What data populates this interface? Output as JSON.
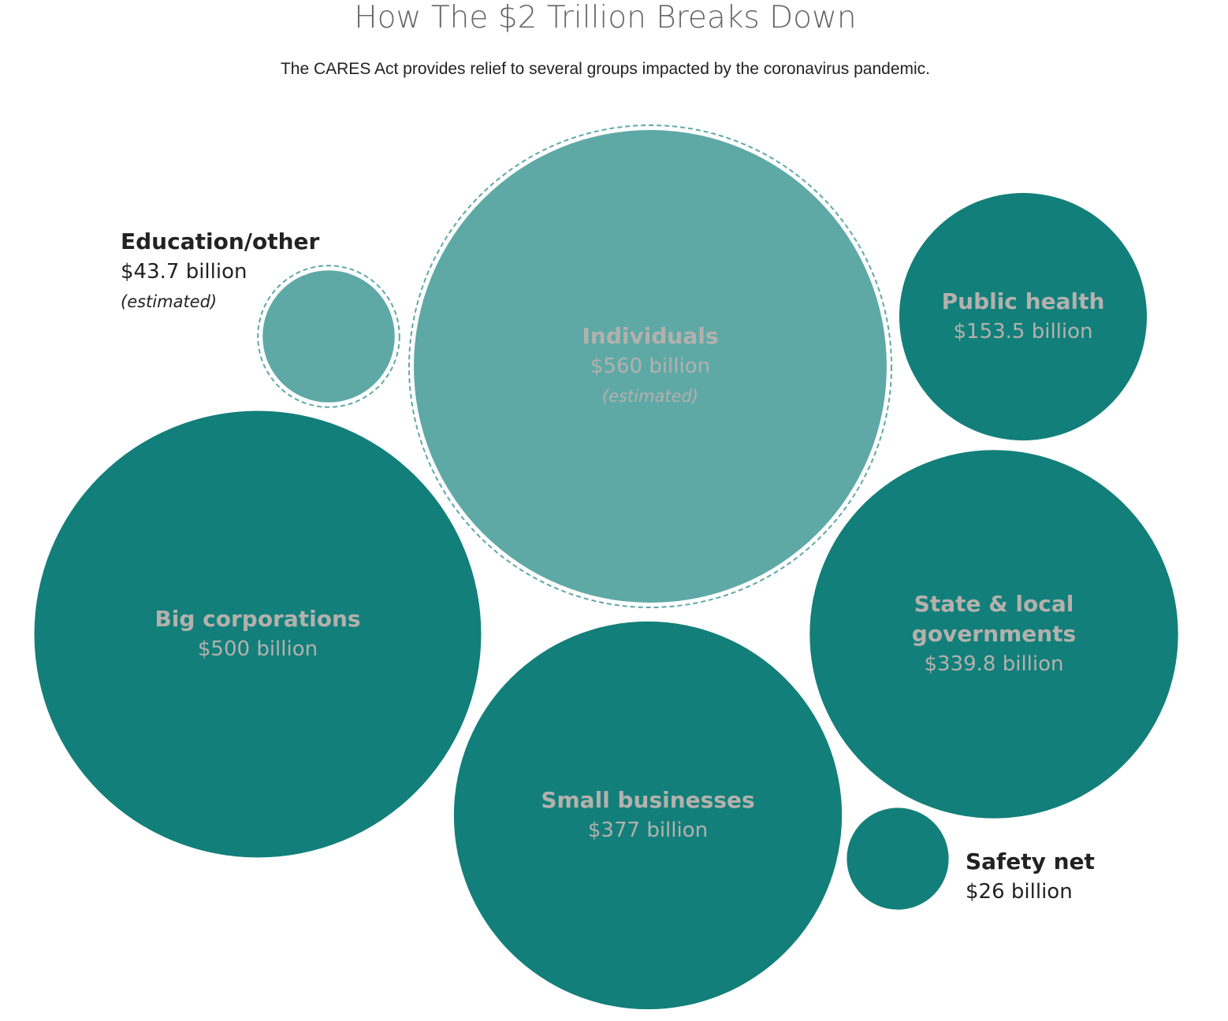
{
  "chart_data": {
    "type": "bubble",
    "title": "How The $2 Trillion Breaks Down",
    "subtitle": "The CARES Act provides relief to several groups impacted by the coronavirus pandemic.",
    "categories": [
      "Individuals",
      "Big corporations",
      "Small businesses",
      "State & local governments",
      "Public health",
      "Education/other",
      "Safety net"
    ],
    "values": [
      560,
      500,
      377,
      339.8,
      153.5,
      43.7,
      26
    ],
    "value_labels": [
      "$560 billion",
      "$500 billion",
      "$377 billion",
      "$339.8 billion",
      "$153.5 billion",
      "$43.7 billion",
      "$26 billion"
    ],
    "notes": [
      "(estimated)",
      null,
      null,
      null,
      null,
      "(estimated)",
      null
    ],
    "colors": [
      "#5ea9a6",
      "#137f7a",
      "#137f7a",
      "#137f7a",
      "#137f7a",
      "#5ea9a6",
      "#137f7a"
    ]
  }
}
